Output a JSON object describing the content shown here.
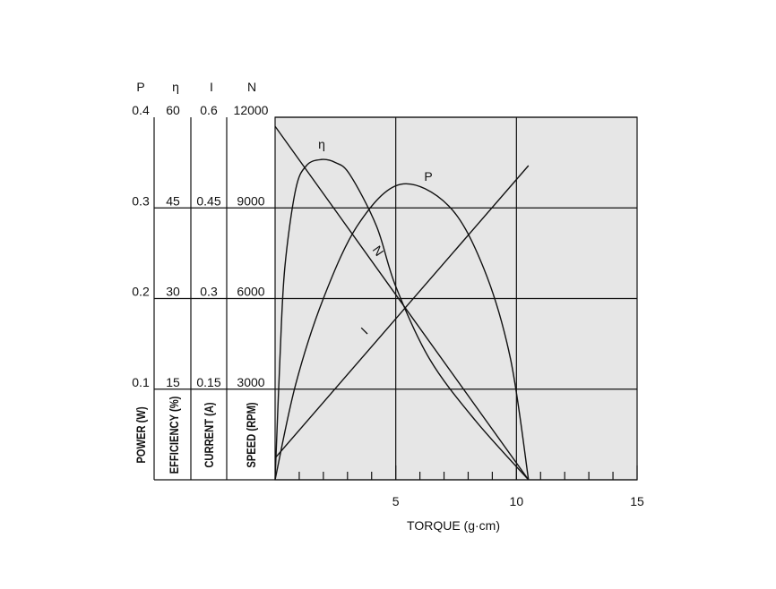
{
  "chart_data": {
    "type": "line",
    "x_label": "TORQUE (g·cm)",
    "xlim": [
      0,
      15
    ],
    "xticks": [
      5,
      10,
      15
    ],
    "x_minor_ticks": [
      1,
      2,
      3,
      4,
      6,
      7,
      8,
      9,
      11,
      12,
      13,
      14
    ],
    "grid": true,
    "y_axes": [
      {
        "symbol": "P",
        "label": "POWER (W)",
        "lim": [
          0,
          0.4
        ],
        "ticks": [
          0.1,
          0.2,
          0.3,
          0.4
        ]
      },
      {
        "symbol": "η",
        "label": "EFFICIENCY (%)",
        "lim": [
          0,
          60
        ],
        "ticks": [
          15,
          30,
          45,
          60
        ]
      },
      {
        "symbol": "I",
        "label": "CURRENT (A)",
        "lim": [
          0,
          0.6
        ],
        "ticks": [
          0.15,
          0.3,
          0.45,
          0.6
        ]
      },
      {
        "symbol": "N",
        "label": "SPEED (RPM)",
        "lim": [
          0,
          12000
        ],
        "ticks": [
          3000,
          6000,
          9000,
          12000
        ]
      }
    ],
    "series": [
      {
        "name": "η",
        "axis": 1,
        "color": "#111111",
        "x": [
          0,
          0.2,
          0.4,
          0.85,
          1.3,
          1.9,
          2.5,
          3.1,
          4.2,
          5,
          6.4,
          8.3,
          10.5
        ],
        "values": [
          0,
          20,
          35,
          48,
          52,
          53,
          52.5,
          50.5,
          42,
          32,
          20,
          9.8,
          0
        ]
      },
      {
        "name": "P",
        "axis": 0,
        "color": "#111111",
        "x": [
          0,
          0.85,
          2,
          3.45,
          5.2,
          7.2,
          8.65,
          9.75,
          10.5
        ],
        "values": [
          0,
          0.105,
          0.2,
          0.282,
          0.326,
          0.302,
          0.233,
          0.134,
          0
        ]
      },
      {
        "name": "N",
        "axis": 3,
        "color": "#111111",
        "x": [
          0,
          10.5
        ],
        "values": [
          11700,
          0
        ]
      },
      {
        "name": "I",
        "axis": 2,
        "color": "#111111",
        "x": [
          0,
          10.5
        ],
        "values": [
          0.036,
          0.52
        ]
      }
    ]
  }
}
